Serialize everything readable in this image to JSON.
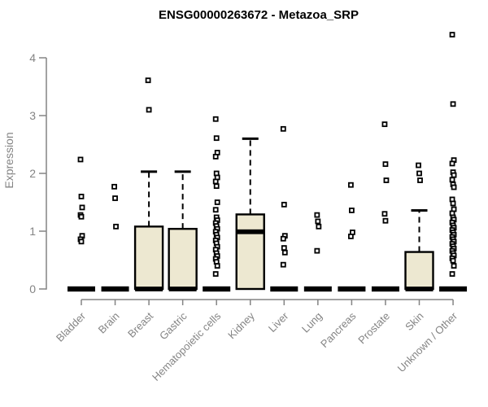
{
  "title": "ENSG00000263672 - Metazoa_SRP",
  "chart_data": {
    "type": "boxplot",
    "title": "ENSG00000263672 - Metazoa_SRP",
    "xlabel": "",
    "ylabel": "Expression",
    "ylim": [
      0,
      4
    ],
    "yticks": [
      "0",
      "1",
      "2",
      "3",
      "4"
    ],
    "grid": false,
    "legend": "none",
    "colors": {
      "box_fill": "#EDE8D1",
      "box_border": "#000000",
      "median": "#000000",
      "axis": "#848484",
      "tick_label": "#848484",
      "title": "#000000",
      "outlier_fill": "#ffffff",
      "outlier_border": "#000000",
      "background": "#ffffff"
    },
    "categories": [
      "Bladder",
      "Brain",
      "Breast",
      "Gastric",
      "Hematopoietic cells",
      "Kidney",
      "Liver",
      "Lung",
      "Pancreas",
      "Prostate",
      "Skin",
      "Unknown / Other"
    ],
    "boxes": [
      {
        "category": "Bladder",
        "q1": 0,
        "median": 0,
        "q3": 0,
        "whisker_low": 0,
        "whisker_high": 0,
        "outliers": [
          2.24,
          1.6,
          1.41,
          1.28,
          1.25,
          0.92,
          0.86,
          0.82
        ]
      },
      {
        "category": "Brain",
        "q1": 0,
        "median": 0,
        "q3": 0,
        "whisker_low": 0,
        "whisker_high": 0,
        "outliers": [
          1.77,
          1.57,
          1.08
        ]
      },
      {
        "category": "Breast",
        "q1": 0,
        "median": 0,
        "q3": 1.08,
        "whisker_low": 0,
        "whisker_high": 2.03,
        "outliers": [
          3.61,
          3.1
        ]
      },
      {
        "category": "Gastric",
        "q1": 0,
        "median": 0,
        "q3": 1.04,
        "whisker_low": 0,
        "whisker_high": 2.03,
        "outliers": []
      },
      {
        "category": "Hematopoietic cells",
        "q1": 0,
        "median": 0,
        "q3": 0,
        "whisker_low": 0,
        "whisker_high": 0,
        "outliers": [
          2.94,
          2.61,
          2.36,
          2.29,
          2.0,
          1.93,
          1.86,
          1.78,
          1.5,
          1.37,
          1.24,
          1.19,
          1.14,
          1.09,
          1.04,
          0.99,
          0.94,
          0.89,
          0.84,
          0.79,
          0.73,
          0.68,
          0.62,
          0.57,
          0.52,
          0.47,
          0.4,
          0.26
        ]
      },
      {
        "category": "Kidney",
        "q1": 0,
        "median": 0.99,
        "q3": 1.29,
        "whisker_low": 0,
        "whisker_high": 2.6,
        "outliers": []
      },
      {
        "category": "Liver",
        "q1": 0,
        "median": 0,
        "q3": 0,
        "whisker_low": 0,
        "whisker_high": 0,
        "outliers": [
          2.77,
          1.46,
          0.92,
          0.87,
          0.71,
          0.63,
          0.42
        ]
      },
      {
        "category": "Lung",
        "q1": 0,
        "median": 0,
        "q3": 0,
        "whisker_low": 0,
        "whisker_high": 0,
        "outliers": [
          1.28,
          1.17,
          1.08,
          0.66
        ]
      },
      {
        "category": "Pancreas",
        "q1": 0,
        "median": 0,
        "q3": 0,
        "whisker_low": 0,
        "whisker_high": 0,
        "outliers": [
          1.8,
          1.36,
          0.98,
          0.91
        ]
      },
      {
        "category": "Prostate",
        "q1": 0,
        "median": 0,
        "q3": 0,
        "whisker_low": 0,
        "whisker_high": 0,
        "outliers": [
          2.85,
          2.16,
          1.88,
          1.3,
          1.18
        ]
      },
      {
        "category": "Skin",
        "q1": 0,
        "median": 0,
        "q3": 0.64,
        "whisker_low": 0,
        "whisker_high": 1.36,
        "outliers": [
          2.14,
          2.0,
          1.88
        ]
      },
      {
        "category": "Unknown / Other",
        "q1": 0,
        "median": 0,
        "q3": 0,
        "whisker_low": 0,
        "whisker_high": 0,
        "outliers": [
          4.4,
          3.2,
          2.23,
          2.17,
          2.02,
          1.97,
          1.89,
          1.81,
          1.76,
          1.55,
          1.48,
          1.38,
          1.31,
          1.24,
          1.2,
          1.15,
          1.1,
          1.06,
          1.02,
          0.98,
          0.94,
          0.9,
          0.86,
          0.82,
          0.78,
          0.74,
          0.7,
          0.66,
          0.62,
          0.58,
          0.53,
          0.49,
          0.4,
          0.26
        ]
      }
    ]
  }
}
